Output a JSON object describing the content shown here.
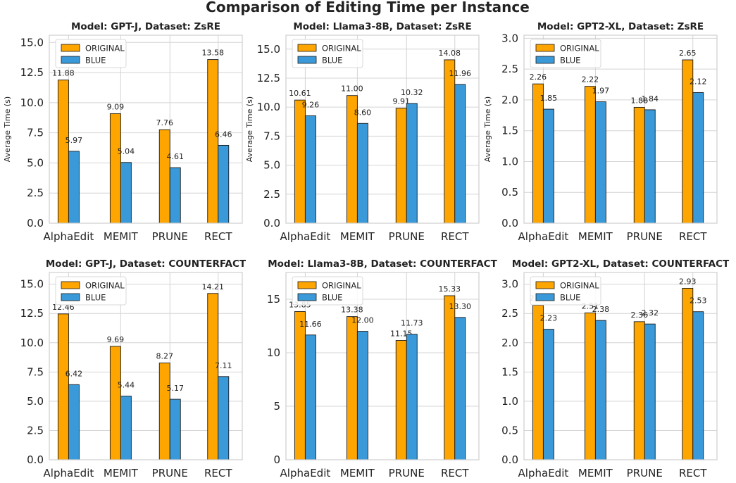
{
  "figure": {
    "title": "Comparison of Editing Time per Instance",
    "ylabel": "Average Time (s)",
    "legend_placement": "top-left",
    "grid": true
  },
  "chart_data": [
    {
      "type": "bar",
      "title": "Model: GPT-J, Dataset: ZsRE",
      "categories": [
        "AlphaEdit",
        "MEMIT",
        "PRUNE",
        "RECT"
      ],
      "series": [
        {
          "name": "ORIGINAL",
          "color": "#FFA500",
          "values": [
            11.88,
            9.09,
            7.76,
            13.58
          ],
          "labels": [
            "11.88",
            "9.09",
            "7.76",
            "13.58"
          ]
        },
        {
          "name": "BLUE",
          "color": "#3A9AD9",
          "values": [
            5.97,
            5.04,
            4.61,
            6.46
          ],
          "labels": [
            "5.97",
            "5.04",
            "4.61",
            "6.46"
          ]
        }
      ],
      "ylabel": "Average Time (s)",
      "ylim": [
        0,
        15.6
      ],
      "yticks": [
        "0.0",
        "2.5",
        "5.0",
        "7.5",
        "10.0",
        "12.5",
        "15.0"
      ],
      "ytick_values": [
        0,
        2.5,
        5,
        7.5,
        10,
        12.5,
        15
      ]
    },
    {
      "type": "bar",
      "title": "Model: Llama3-8B, Dataset: ZsRE",
      "categories": [
        "AlphaEdit",
        "MEMIT",
        "PRUNE",
        "RECT"
      ],
      "series": [
        {
          "name": "ORIGINAL",
          "color": "#FFA500",
          "values": [
            10.61,
            11.0,
            9.91,
            14.08
          ],
          "labels": [
            "10.61",
            "11.00",
            "9.91",
            "14.08"
          ]
        },
        {
          "name": "BLUE",
          "color": "#3A9AD9",
          "values": [
            9.26,
            8.6,
            10.32,
            11.96
          ],
          "labels": [
            "9.26",
            "8.60",
            "10.32",
            "11.96"
          ]
        }
      ],
      "ylabel": "Average Time (s)",
      "ylim": [
        0,
        16.2
      ],
      "yticks": [
        "0.0",
        "2.5",
        "5.0",
        "7.5",
        "10.0",
        "12.5",
        "15.0"
      ],
      "ytick_values": [
        0,
        2.5,
        5,
        7.5,
        10,
        12.5,
        15
      ]
    },
    {
      "type": "bar",
      "title": "Model: GPT2-XL, Dataset: ZsRE",
      "categories": [
        "AlphaEdit",
        "MEMIT",
        "PRUNE",
        "RECT"
      ],
      "series": [
        {
          "name": "ORIGINAL",
          "color": "#FFA500",
          "values": [
            2.26,
            2.22,
            1.88,
            2.65
          ],
          "labels": [
            "2.26",
            "2.22",
            "1.88",
            "2.65"
          ]
        },
        {
          "name": "BLUE",
          "color": "#3A9AD9",
          "values": [
            1.85,
            1.97,
            1.84,
            2.12
          ],
          "labels": [
            "1.85",
            "1.97",
            "1.84",
            "2.12"
          ]
        }
      ],
      "ylabel": "Average Time (s)",
      "ylim": [
        0,
        3.05
      ],
      "yticks": [
        "0.0",
        "0.5",
        "1.0",
        "1.5",
        "2.0",
        "2.5",
        "3.0"
      ],
      "ytick_values": [
        0,
        0.5,
        1,
        1.5,
        2,
        2.5,
        3
      ]
    },
    {
      "type": "bar",
      "title": "Model: GPT-J, Dataset: COUNTERFACT",
      "categories": [
        "AlphaEdit",
        "MEMIT",
        "PRUNE",
        "RECT"
      ],
      "series": [
        {
          "name": "ORIGINAL",
          "color": "#FFA500",
          "values": [
            12.46,
            9.69,
            8.27,
            14.21
          ],
          "labels": [
            "12.46",
            "9.69",
            "8.27",
            "14.21"
          ]
        },
        {
          "name": "BLUE",
          "color": "#3A9AD9",
          "values": [
            6.42,
            5.44,
            5.17,
            7.11
          ],
          "labels": [
            "6.42",
            "5.44",
            "5.17",
            "7.11"
          ]
        }
      ],
      "ylim": [
        0,
        16.0
      ],
      "yticks": [
        "0.0",
        "2.5",
        "5.0",
        "7.5",
        "10.0",
        "12.5",
        "15.0"
      ],
      "ytick_values": [
        0,
        2.5,
        5,
        7.5,
        10,
        12.5,
        15
      ]
    },
    {
      "type": "bar",
      "title": "Model: Llama3-8B, Dataset: COUNTERFACT",
      "categories": [
        "AlphaEdit",
        "MEMIT",
        "PRUNE",
        "RECT"
      ],
      "series": [
        {
          "name": "ORIGINAL",
          "color": "#FFA500",
          "values": [
            13.85,
            13.38,
            11.15,
            15.33
          ],
          "labels": [
            "13.85",
            "13.38",
            "11.15",
            "15.33"
          ]
        },
        {
          "name": "BLUE",
          "color": "#3A9AD9",
          "values": [
            11.66,
            12.0,
            11.73,
            13.3
          ],
          "labels": [
            "11.66",
            "12.00",
            "11.73",
            "13.30"
          ]
        }
      ],
      "ylim": [
        0,
        17.5
      ],
      "yticks": [
        "0",
        "5",
        "10",
        "15"
      ],
      "ytick_values": [
        0,
        5,
        10,
        15
      ]
    },
    {
      "type": "bar",
      "title": "Model: GPT2-XL, Dataset: COUNTERFACT",
      "categories": [
        "AlphaEdit",
        "MEMIT",
        "PRUNE",
        "RECT"
      ],
      "series": [
        {
          "name": "ORIGINAL",
          "color": "#FFA500",
          "values": [
            2.64,
            2.51,
            2.36,
            2.93
          ],
          "labels": [
            "2.64",
            "2.51",
            "2.36",
            "2.93"
          ]
        },
        {
          "name": "BLUE",
          "color": "#3A9AD9",
          "values": [
            2.23,
            2.38,
            2.32,
            2.53
          ],
          "labels": [
            "2.23",
            "2.38",
            "2.32",
            "2.53"
          ]
        }
      ],
      "ylim": [
        0,
        3.2
      ],
      "yticks": [
        "0.0",
        "0.5",
        "1.0",
        "1.5",
        "2.0",
        "2.5",
        "3.0"
      ],
      "ytick_values": [
        0,
        0.5,
        1,
        1.5,
        2,
        2.5,
        3
      ]
    }
  ]
}
